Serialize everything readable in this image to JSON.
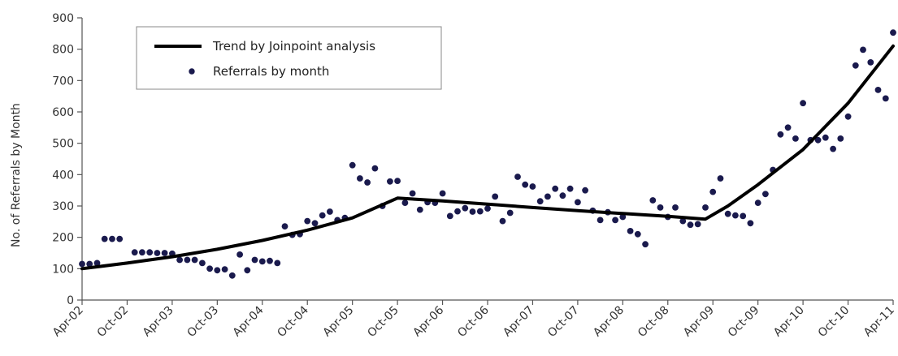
{
  "chart_data": {
    "type": "scatter",
    "title": "",
    "xlabel": "",
    "ylabel": "No. of Referrals by Month",
    "ylim": [
      0,
      900
    ],
    "yticks": [
      0,
      100,
      200,
      300,
      400,
      500,
      600,
      700,
      800,
      900
    ],
    "xlim": [
      "2002-04",
      "2011-04"
    ],
    "xticks": [
      {
        "date": "2002-04",
        "label": "Apr-02"
      },
      {
        "date": "2002-10",
        "label": "Oct-02"
      },
      {
        "date": "2003-04",
        "label": "Apr-03"
      },
      {
        "date": "2003-10",
        "label": "Oct-03"
      },
      {
        "date": "2004-04",
        "label": "Apr-04"
      },
      {
        "date": "2004-10",
        "label": "Oct-04"
      },
      {
        "date": "2005-04",
        "label": "Apr-05"
      },
      {
        "date": "2005-10",
        "label": "Oct-05"
      },
      {
        "date": "2006-04",
        "label": "Apr-06"
      },
      {
        "date": "2006-10",
        "label": "Oct-06"
      },
      {
        "date": "2007-04",
        "label": "Apr-07"
      },
      {
        "date": "2007-10",
        "label": "Oct-07"
      },
      {
        "date": "2008-04",
        "label": "Apr-08"
      },
      {
        "date": "2008-10",
        "label": "Oct-08"
      },
      {
        "date": "2009-04",
        "label": "Apr-09"
      },
      {
        "date": "2009-10",
        "label": "Oct-09"
      },
      {
        "date": "2010-04",
        "label": "Apr-10"
      },
      {
        "date": "2010-10",
        "label": "Oct-10"
      },
      {
        "date": "2011-04",
        "label": "Apr-11"
      }
    ],
    "grid": false,
    "legend_position": "top-left",
    "series": [
      {
        "name": "Trend by Joinpoint analysis",
        "style": "line",
        "color": "#000000",
        "points": [
          {
            "x": "2002-04",
            "y": 100
          },
          {
            "x": "2002-10",
            "y": 118
          },
          {
            "x": "2003-04",
            "y": 138
          },
          {
            "x": "2003-10",
            "y": 162
          },
          {
            "x": "2004-04",
            "y": 190
          },
          {
            "x": "2004-10",
            "y": 223
          },
          {
            "x": "2005-04",
            "y": 262
          },
          {
            "x": "2005-10",
            "y": 325
          },
          {
            "x": "2006-04",
            "y": 316
          },
          {
            "x": "2006-10",
            "y": 306
          },
          {
            "x": "2007-04",
            "y": 295
          },
          {
            "x": "2007-10",
            "y": 285
          },
          {
            "x": "2008-04",
            "y": 276
          },
          {
            "x": "2008-10",
            "y": 267
          },
          {
            "x": "2009-03",
            "y": 258
          },
          {
            "x": "2009-06",
            "y": 300
          },
          {
            "x": "2009-10",
            "y": 368
          },
          {
            "x": "2010-04",
            "y": 480
          },
          {
            "x": "2010-10",
            "y": 628
          },
          {
            "x": "2011-04",
            "y": 810
          }
        ]
      },
      {
        "name": "Referrals by month",
        "style": "markers",
        "color": "#1a1a4d",
        "points": [
          {
            "x": "2002-04",
            "y": 115
          },
          {
            "x": "2002-05",
            "y": 115
          },
          {
            "x": "2002-06",
            "y": 118
          },
          {
            "x": "2002-07",
            "y": 195
          },
          {
            "x": "2002-08",
            "y": 195
          },
          {
            "x": "2002-09",
            "y": 195
          },
          {
            "x": "2002-11",
            "y": 152
          },
          {
            "x": "2002-12",
            "y": 152
          },
          {
            "x": "2003-01",
            "y": 152
          },
          {
            "x": "2003-02",
            "y": 150
          },
          {
            "x": "2003-03",
            "y": 150
          },
          {
            "x": "2003-04",
            "y": 148
          },
          {
            "x": "2003-05",
            "y": 128
          },
          {
            "x": "2003-06",
            "y": 128
          },
          {
            "x": "2003-07",
            "y": 128
          },
          {
            "x": "2003-08",
            "y": 118
          },
          {
            "x": "2003-09",
            "y": 100
          },
          {
            "x": "2003-10",
            "y": 95
          },
          {
            "x": "2003-11",
            "y": 98
          },
          {
            "x": "2003-12",
            "y": 78
          },
          {
            "x": "2004-01",
            "y": 145
          },
          {
            "x": "2004-02",
            "y": 95
          },
          {
            "x": "2004-03",
            "y": 128
          },
          {
            "x": "2004-04",
            "y": 123
          },
          {
            "x": "2004-05",
            "y": 125
          },
          {
            "x": "2004-06",
            "y": 118
          },
          {
            "x": "2004-07",
            "y": 235
          },
          {
            "x": "2004-08",
            "y": 208
          },
          {
            "x": "2004-09",
            "y": 210
          },
          {
            "x": "2004-10",
            "y": 252
          },
          {
            "x": "2004-11",
            "y": 245
          },
          {
            "x": "2004-12",
            "y": 270
          },
          {
            "x": "2005-01",
            "y": 282
          },
          {
            "x": "2005-02",
            "y": 255
          },
          {
            "x": "2005-03",
            "y": 262
          },
          {
            "x": "2005-04",
            "y": 430
          },
          {
            "x": "2005-05",
            "y": 388
          },
          {
            "x": "2005-06",
            "y": 375
          },
          {
            "x": "2005-07",
            "y": 420
          },
          {
            "x": "2005-08",
            "y": 300
          },
          {
            "x": "2005-09",
            "y": 378
          },
          {
            "x": "2005-10",
            "y": 380
          },
          {
            "x": "2005-11",
            "y": 310
          },
          {
            "x": "2005-12",
            "y": 340
          },
          {
            "x": "2006-01",
            "y": 288
          },
          {
            "x": "2006-02",
            "y": 312
          },
          {
            "x": "2006-03",
            "y": 310
          },
          {
            "x": "2006-04",
            "y": 340
          },
          {
            "x": "2006-05",
            "y": 268
          },
          {
            "x": "2006-06",
            "y": 283
          },
          {
            "x": "2006-07",
            "y": 293
          },
          {
            "x": "2006-08",
            "y": 282
          },
          {
            "x": "2006-09",
            "y": 283
          },
          {
            "x": "2006-10",
            "y": 292
          },
          {
            "x": "2006-11",
            "y": 330
          },
          {
            "x": "2006-12",
            "y": 252
          },
          {
            "x": "2007-01",
            "y": 278
          },
          {
            "x": "2007-02",
            "y": 393
          },
          {
            "x": "2007-03",
            "y": 368
          },
          {
            "x": "2007-04",
            "y": 362
          },
          {
            "x": "2007-05",
            "y": 315
          },
          {
            "x": "2007-06",
            "y": 330
          },
          {
            "x": "2007-07",
            "y": 355
          },
          {
            "x": "2007-08",
            "y": 333
          },
          {
            "x": "2007-09",
            "y": 355
          },
          {
            "x": "2007-10",
            "y": 312
          },
          {
            "x": "2007-11",
            "y": 350
          },
          {
            "x": "2007-12",
            "y": 285
          },
          {
            "x": "2008-01",
            "y": 255
          },
          {
            "x": "2008-02",
            "y": 280
          },
          {
            "x": "2008-03",
            "y": 255
          },
          {
            "x": "2008-04",
            "y": 265
          },
          {
            "x": "2008-05",
            "y": 220
          },
          {
            "x": "2008-06",
            "y": 210
          },
          {
            "x": "2008-07",
            "y": 178
          },
          {
            "x": "2008-08",
            "y": 318
          },
          {
            "x": "2008-09",
            "y": 295
          },
          {
            "x": "2008-10",
            "y": 265
          },
          {
            "x": "2008-11",
            "y": 295
          },
          {
            "x": "2008-12",
            "y": 252
          },
          {
            "x": "2009-01",
            "y": 240
          },
          {
            "x": "2009-02",
            "y": 242
          },
          {
            "x": "2009-03",
            "y": 295
          },
          {
            "x": "2009-04",
            "y": 345
          },
          {
            "x": "2009-05",
            "y": 388
          },
          {
            "x": "2009-06",
            "y": 275
          },
          {
            "x": "2009-07",
            "y": 270
          },
          {
            "x": "2009-08",
            "y": 268
          },
          {
            "x": "2009-09",
            "y": 245
          },
          {
            "x": "2009-10",
            "y": 310
          },
          {
            "x": "2009-11",
            "y": 338
          },
          {
            "x": "2009-12",
            "y": 415
          },
          {
            "x": "2010-01",
            "y": 528
          },
          {
            "x": "2010-02",
            "y": 550
          },
          {
            "x": "2010-03",
            "y": 515
          },
          {
            "x": "2010-04",
            "y": 628
          },
          {
            "x": "2010-05",
            "y": 510
          },
          {
            "x": "2010-06",
            "y": 510
          },
          {
            "x": "2010-07",
            "y": 518
          },
          {
            "x": "2010-08",
            "y": 482
          },
          {
            "x": "2010-09",
            "y": 515
          },
          {
            "x": "2010-10",
            "y": 585
          },
          {
            "x": "2010-11",
            "y": 748
          },
          {
            "x": "2010-12",
            "y": 798
          },
          {
            "x": "2011-01",
            "y": 758
          },
          {
            "x": "2011-02",
            "y": 670
          },
          {
            "x": "2011-03",
            "y": 643
          },
          {
            "x": "2011-04",
            "y": 853
          }
        ]
      }
    ]
  }
}
